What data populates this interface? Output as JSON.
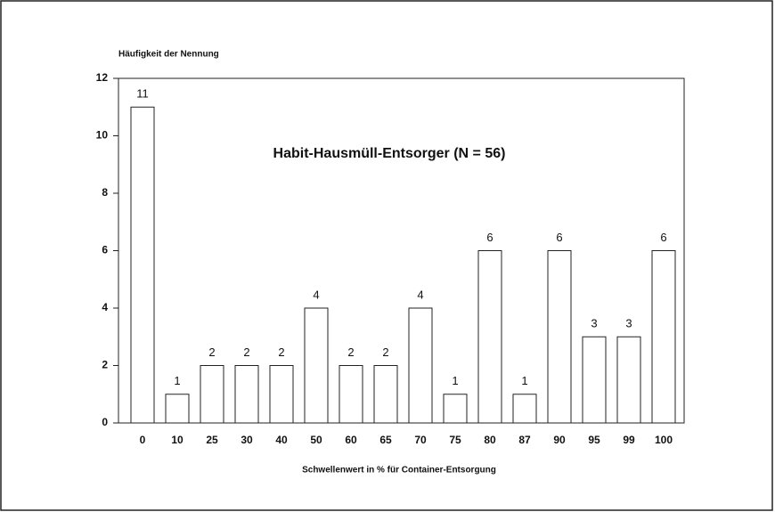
{
  "chart_data": {
    "type": "bar",
    "title": "Habit-Hausmüll-Entsorger (N = 56)",
    "y_label": "Häufigkeit der Nennung",
    "x_label": "Schwellenwert in % für Container-Entsorgung",
    "categories": [
      "0",
      "10",
      "25",
      "30",
      "40",
      "50",
      "60",
      "65",
      "70",
      "75",
      "80",
      "87",
      "90",
      "95",
      "99",
      "100"
    ],
    "values": [
      11,
      1,
      2,
      2,
      2,
      4,
      2,
      2,
      4,
      1,
      6,
      1,
      6,
      3,
      3,
      6
    ],
    "color": "#ffffff",
    "ylim": [
      0,
      12
    ],
    "yticks": [
      0,
      2,
      4,
      6,
      8,
      10,
      12
    ],
    "grid": false
  }
}
